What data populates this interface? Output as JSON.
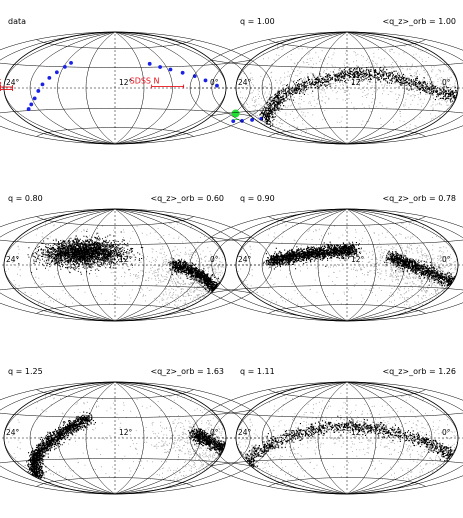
{
  "figure": {
    "panels": [
      {
        "label_left": "data",
        "label_right": "",
        "kind": "data",
        "ticks": [
          "24°",
          "12°",
          "0°"
        ],
        "stream": null,
        "points_count": 20,
        "annotations": [
          "SDSS N",
          "SDSS S"
        ]
      },
      {
        "label_left": "q = 1.00",
        "label_right": "<q_z>_orb = 1.00",
        "kind": "sim",
        "ticks": [
          "24°",
          "12°",
          "0°"
        ],
        "stream": [
          [
            -12.0,
            -12
          ],
          [
            -10.5,
            -13
          ],
          [
            -9.0,
            -12
          ],
          [
            -7.5,
            -8
          ],
          [
            -6.0,
            -2
          ],
          [
            -4.5,
            8
          ],
          [
            -3.0,
            18
          ],
          [
            -1.5,
            22
          ],
          [
            0.0,
            20
          ],
          [
            1.5,
            14
          ],
          [
            3.0,
            4
          ],
          [
            4.5,
            -8
          ],
          [
            5.5,
            -22
          ],
          [
            6.5,
            -32
          ],
          [
            7.5,
            -45
          ]
        ],
        "stream_width": 9,
        "diffuse": 1800
      },
      {
        "label_left": "q = 0.80",
        "label_right": "<q_z>_orb = 0.60",
        "kind": "sim",
        "ticks": [
          "24°",
          "12°",
          "0°"
        ],
        "stream": [
          [
            -12.5,
            -32
          ],
          [
            -10.5,
            -35
          ],
          [
            -8.5,
            -32
          ],
          [
            -7.0,
            -22
          ],
          [
            -6.0,
            -12
          ],
          [
            -5.0,
            -4
          ],
          [
            -4.0,
            0
          ]
        ],
        "stream_width": 8,
        "cloud": {
          "lon": 2.3,
          "lat": 18,
          "spread_lon": 2.4,
          "spread_lat": 15,
          "n": 2600
        },
        "diffuse": 2800
      },
      {
        "label_left": "q = 0.90",
        "label_right": "<q_z>_orb = 0.78",
        "kind": "sim",
        "ticks": [
          "24°",
          "12°",
          "0°"
        ],
        "stream": [
          [
            -12.5,
            -28
          ],
          [
            -10.5,
            -30
          ],
          [
            -8.5,
            -24
          ],
          [
            -6.5,
            -14
          ],
          [
            -5.0,
            -4
          ],
          [
            -4.0,
            4
          ],
          [
            -3.0,
            12
          ]
        ],
        "stream_width": 9,
        "stream2": [
          [
            -0.5,
            22
          ],
          [
            1.0,
            21
          ],
          [
            2.5,
            17
          ],
          [
            4.0,
            12
          ],
          [
            5.5,
            6
          ]
        ],
        "diffuse": 2200
      },
      {
        "label_left": "q = 1.25",
        "label_right": "<q_z>_orb = 1.63",
        "kind": "sim",
        "ticks": [
          "24°",
          "12°",
          "0°"
        ],
        "stream": [
          [
            -12.5,
            -42
          ],
          [
            -11.0,
            -36
          ],
          [
            -9.5,
            -26
          ],
          [
            -8.0,
            -14
          ],
          [
            -6.5,
            -2
          ],
          [
            -5.5,
            6
          ]
        ],
        "stream_width": 9,
        "stream2": [
          [
            2.0,
            30
          ],
          [
            3.0,
            18
          ],
          [
            4.0,
            4
          ],
          [
            5.0,
            -10
          ],
          [
            6.0,
            -24
          ],
          [
            7.0,
            -38
          ],
          [
            8.0,
            -50
          ]
        ],
        "diffuse": 1800
      },
      {
        "label_left": "q = 1.11",
        "label_right": "<q_z>_orb = 1.26",
        "kind": "sim",
        "ticks": [
          "24°",
          "12°",
          "0°"
        ],
        "stream": [
          [
            -12.5,
            -42
          ],
          [
            -11.0,
            -38
          ],
          [
            -9.5,
            -30
          ],
          [
            -8.0,
            -22
          ],
          [
            -6.5,
            -12
          ],
          [
            -5.0,
            -2
          ],
          [
            -3.5,
            8
          ],
          [
            -2.0,
            14
          ],
          [
            -0.5,
            18
          ],
          [
            1.0,
            17
          ],
          [
            2.5,
            12
          ],
          [
            4.0,
            3
          ],
          [
            5.5,
            -8
          ],
          [
            7.0,
            -20
          ],
          [
            8.5,
            -34
          ],
          [
            9.5,
            -46
          ]
        ],
        "stream_width": 9,
        "diffuse": 1600
      }
    ]
  },
  "colors": {
    "points": "#1a22e6",
    "sgr_core": "#22dd33",
    "annotation": "#e8101a",
    "grid": "#000000",
    "stars": "#000000",
    "diffuse": "#8a8a8a"
  },
  "icons": {
    "sgr_core": "green-filled-circle",
    "data_points": "blue-dots"
  },
  "data_points": [
    [
      -13.5,
      -30
    ],
    [
      -12.8,
      -33
    ],
    [
      -12.0,
      -36
    ],
    [
      -11.2,
      -38
    ],
    [
      -7.3,
      3
    ],
    [
      -6.5,
      10
    ],
    [
      -5.8,
      16
    ],
    [
      -5.0,
      21
    ],
    [
      -4.2,
      26
    ],
    [
      -3.5,
      30
    ],
    [
      -2.8,
      35
    ],
    [
      3.6,
      36
    ],
    [
      3.9,
      30
    ],
    [
      4.3,
      22
    ],
    [
      4.7,
      14
    ],
    [
      5.1,
      5
    ],
    [
      5.4,
      -4
    ],
    [
      5.8,
      -14
    ],
    [
      6.3,
      -22
    ],
    [
      6.8,
      -28
    ]
  ],
  "sgr_core": [
    -10.2,
    -30
  ]
}
